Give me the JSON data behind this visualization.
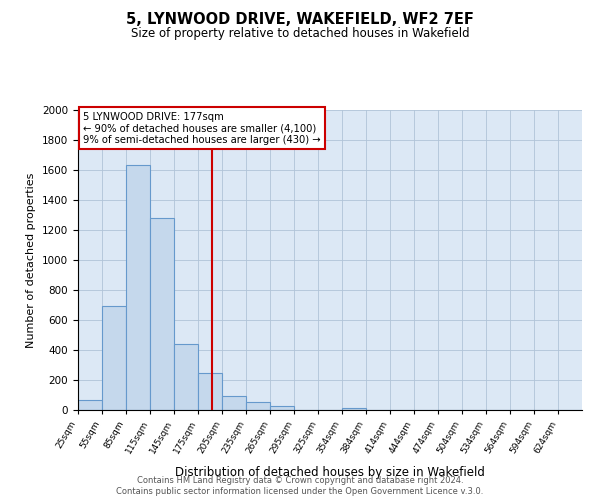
{
  "title": "5, LYNWOOD DRIVE, WAKEFIELD, WF2 7EF",
  "subtitle": "Size of property relative to detached houses in Wakefield",
  "xlabel": "Distribution of detached houses by size in Wakefield",
  "ylabel": "Number of detached properties",
  "bar_color": "#c5d8ec",
  "bar_edge_color": "#6699cc",
  "bin_labels": [
    "25sqm",
    "55sqm",
    "85sqm",
    "115sqm",
    "145sqm",
    "175sqm",
    "205sqm",
    "235sqm",
    "265sqm",
    "295sqm",
    "325sqm",
    "354sqm",
    "384sqm",
    "414sqm",
    "444sqm",
    "474sqm",
    "504sqm",
    "534sqm",
    "564sqm",
    "594sqm",
    "624sqm"
  ],
  "bin_left_edges": [
    10,
    40,
    70,
    100,
    130,
    160,
    190,
    220,
    250,
    280,
    310,
    339,
    369,
    399,
    429,
    459,
    489,
    519,
    549,
    579,
    609
  ],
  "bin_width": 30,
  "n_bins": 21,
  "xmin": 10,
  "xmax": 639,
  "values": [
    70,
    695,
    1635,
    1280,
    440,
    250,
    95,
    55,
    30,
    0,
    0,
    15,
    0,
    0,
    0,
    0,
    0,
    0,
    0,
    0,
    0
  ],
  "vline_x": 177,
  "vline_color": "#cc0000",
  "annotation_line1": "5 LYNWOOD DRIVE: 177sqm",
  "annotation_line2": "← 90% of detached houses are smaller (4,100)",
  "annotation_line3": "9% of semi-detached houses are larger (430) →",
  "ylim": [
    0,
    2000
  ],
  "yticks": [
    0,
    200,
    400,
    600,
    800,
    1000,
    1200,
    1400,
    1600,
    1800,
    2000
  ],
  "background_color": "#ffffff",
  "axes_bg_color": "#dce8f5",
  "grid_color": "#b0c4d8",
  "footer_line1": "Contains HM Land Registry data © Crown copyright and database right 2024.",
  "footer_line2": "Contains public sector information licensed under the Open Government Licence v.3.0."
}
